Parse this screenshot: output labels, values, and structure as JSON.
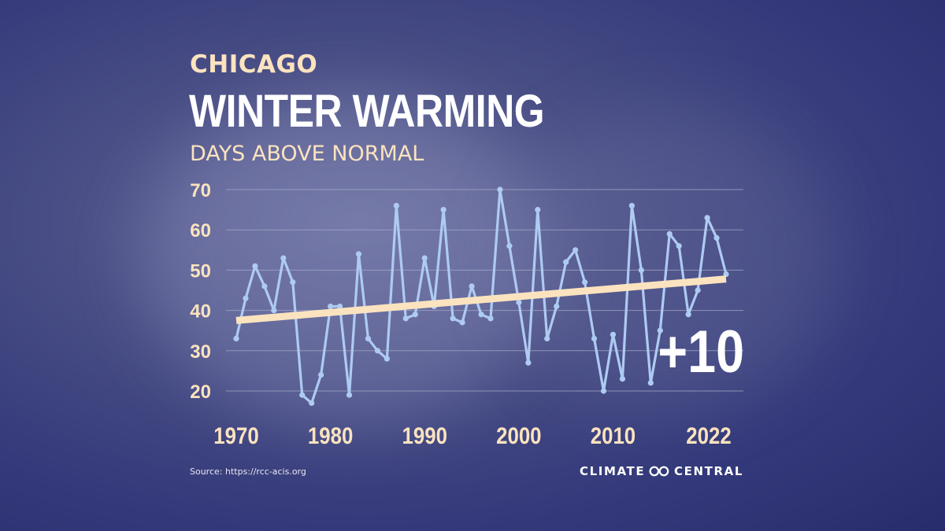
{
  "header": {
    "city": "CHICAGO",
    "title": "WINTER WARMING",
    "subtitle": "DAYS ABOVE NORMAL"
  },
  "annotation": "+10",
  "footer": {
    "source": "Source: https://rcc-acis.org",
    "brand_left": "CLIMATE",
    "brand_right": "CENTRAL",
    "brand_icon": "climate-central-logo-icon"
  },
  "colors": {
    "accent": "#fbe3bf",
    "series_line": "#aecbf2",
    "trend_line": "#fbe3bf",
    "text_white": "#ffffff",
    "grid": "#a6aac8"
  },
  "chart_data": {
    "type": "line",
    "title": "WINTER WARMING",
    "subtitle": "DAYS ABOVE NORMAL",
    "xlabel": "",
    "ylabel": "",
    "xlim": [
      1970,
      2022
    ],
    "ylim": [
      15,
      70
    ],
    "x_tick_labels": [
      "1970",
      "1980",
      "1990",
      "2000",
      "2010",
      "2022"
    ],
    "x_tick_values": [
      1970,
      1980,
      1990,
      2000,
      2010,
      2022
    ],
    "y_ticks": [
      20,
      30,
      40,
      50,
      60,
      70
    ],
    "grid": true,
    "series": [
      {
        "x": [
          1970,
          1971,
          1972,
          1973,
          1974,
          1975,
          1976,
          1977,
          1978,
          1979,
          1980,
          1981,
          1982,
          1983,
          1984,
          1985,
          1986,
          1987,
          1988,
          1989,
          1990,
          1991,
          1992,
          1993,
          1994,
          1995,
          1996,
          1997,
          1998,
          1999,
          2000,
          2001,
          2002,
          2003,
          2004,
          2005,
          2006,
          2007,
          2008,
          2009,
          2010,
          2011,
          2012,
          2013,
          2014,
          2015,
          2016,
          2017,
          2018,
          2019,
          2020,
          2021,
          2022
        ],
        "values": [
          33,
          43,
          51,
          46,
          40,
          53,
          47,
          19,
          17,
          24,
          41,
          41,
          19,
          54,
          33,
          30,
          28,
          66,
          38,
          39,
          53,
          41,
          65,
          38,
          37,
          46,
          39,
          38,
          70,
          56,
          42,
          27,
          65,
          33,
          41,
          52,
          55,
          47,
          33,
          20,
          34,
          23,
          66,
          50,
          22,
          35,
          59,
          56,
          39,
          45,
          63,
          58,
          49
        ]
      },
      {
        "x": [
          1970,
          2022
        ],
        "values": [
          37.5,
          47.8
        ]
      }
    ]
  }
}
